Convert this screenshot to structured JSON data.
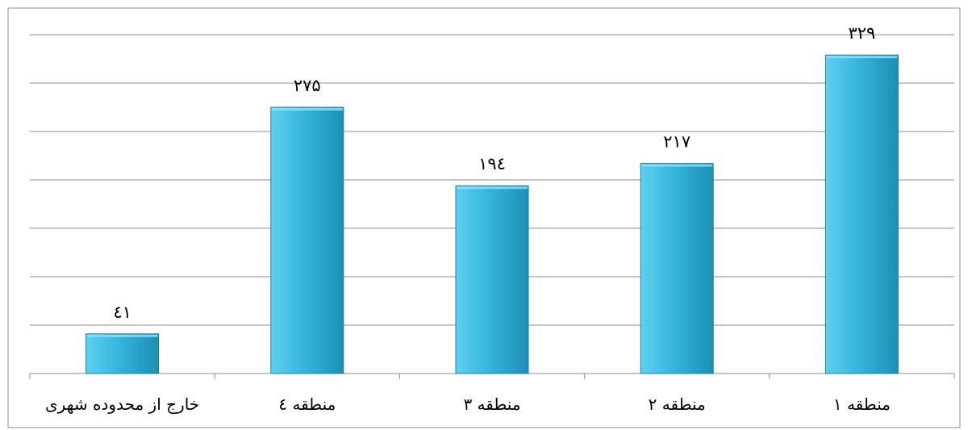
{
  "chart_data": {
    "type": "bar",
    "categories": [
      "منطقه ۱",
      "منطقه ۲",
      "منطقه ۳",
      "منطقه ٤",
      "خارج از محدوده شهری"
    ],
    "values": [
      329,
      217,
      194,
      275,
      41
    ],
    "data_labels": [
      "۳۲۹",
      "۲۱۷",
      "۱۹٤",
      "۲۷۵",
      "٤۱"
    ],
    "category_order": "right-to-left",
    "ylim": [
      0,
      350
    ],
    "y_gridline_step": 50,
    "grid": true,
    "legend": "none",
    "title": "",
    "xlabel": "",
    "ylabel": ""
  },
  "colors": {
    "bar_top": "#5fd0f0",
    "bar_mid": "#36b5dc",
    "bar_bottom": "#1d8fb5",
    "bar_edge": "#1a7fa3",
    "grid": "#8c8c8c"
  }
}
